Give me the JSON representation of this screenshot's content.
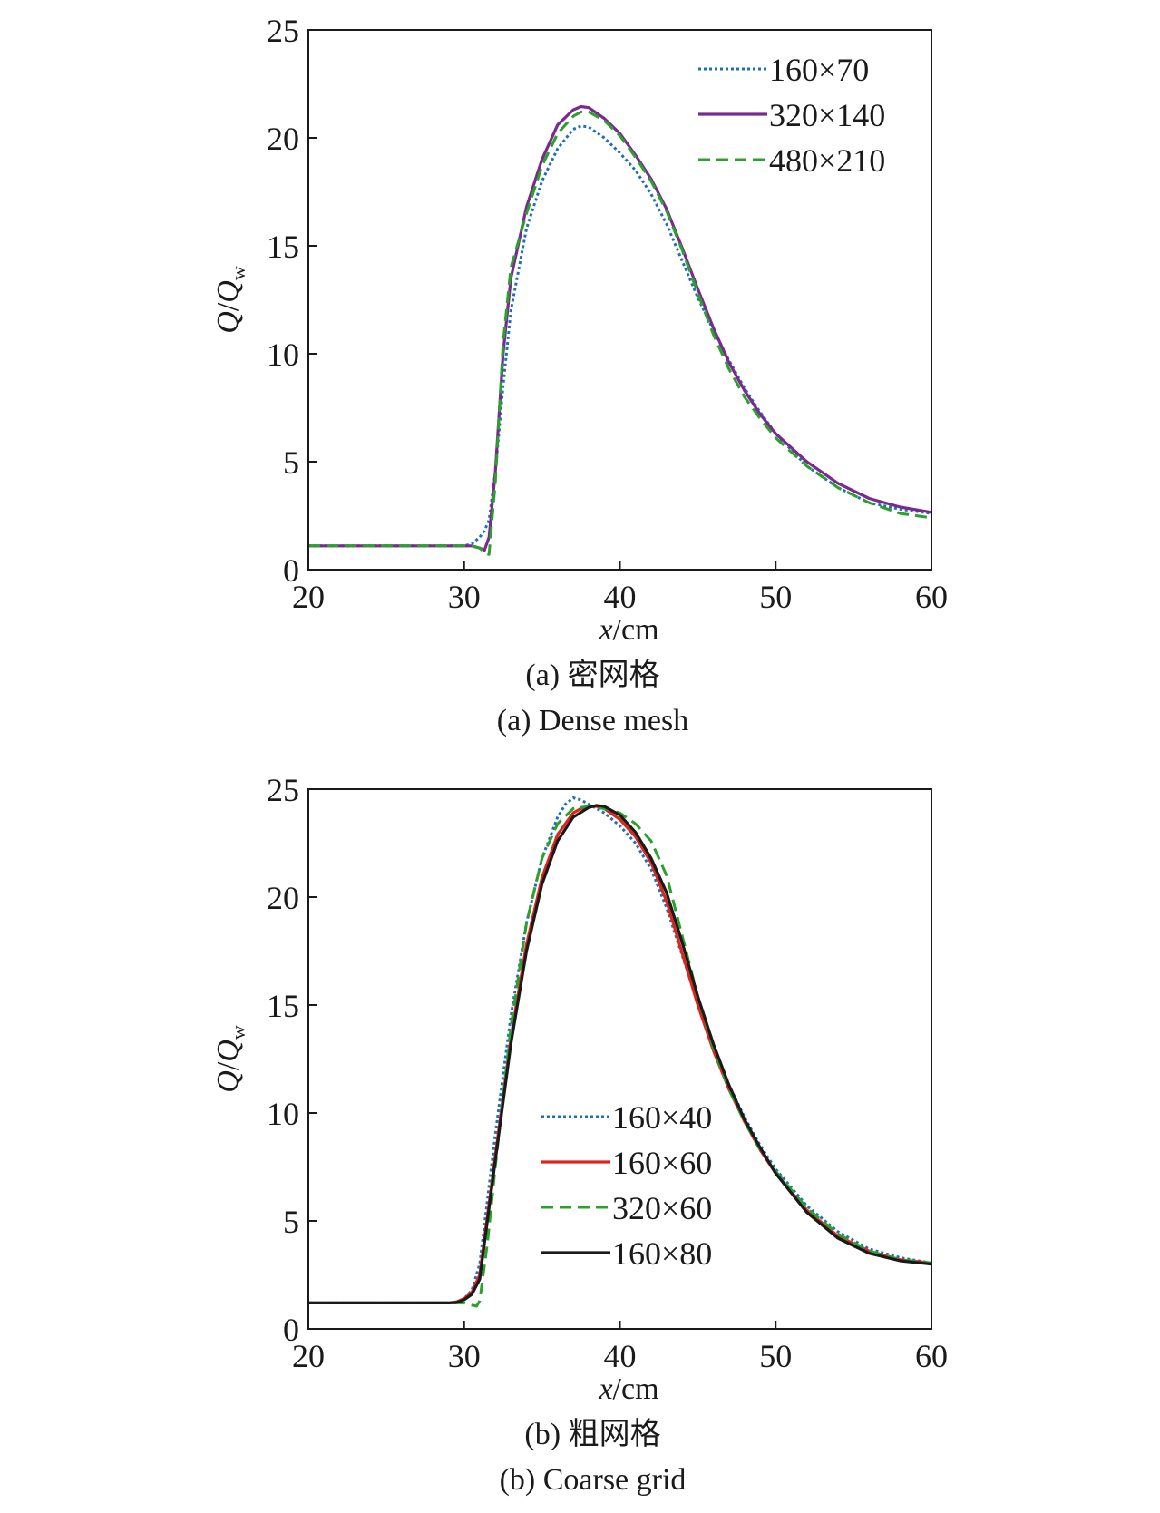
{
  "chart_data": [
    {
      "type": "line",
      "caption_cn": "(a) 密网格",
      "caption_en": "(a) Dense mesh",
      "xlabel_var": "x",
      "xlabel_unit": "/cm",
      "ylabel_num": "Q",
      "ylabel_den": "Q",
      "ylabel_sub": "w",
      "xlim": [
        20,
        60
      ],
      "ylim": [
        0,
        25
      ],
      "xticks": [
        20,
        30,
        40,
        50,
        60
      ],
      "yticks": [
        0,
        5,
        10,
        15,
        20,
        25
      ],
      "grid": false,
      "legend_position": "top-right",
      "series": [
        {
          "name": "160×70",
          "color": "#1f6fb8",
          "style": "dotted",
          "x": [
            20,
            29,
            30,
            30.5,
            31,
            31.3,
            31.6,
            32,
            32.5,
            33,
            34,
            35,
            36,
            37,
            37.5,
            38,
            39,
            40,
            41,
            42,
            43,
            44,
            45,
            46,
            47,
            48,
            49,
            50,
            52,
            54,
            56,
            58,
            60
          ],
          "y": [
            1.1,
            1.1,
            1.1,
            1.2,
            1.5,
            1.8,
            2.3,
            4.5,
            8.5,
            12.0,
            15.8,
            18.0,
            19.5,
            20.4,
            20.55,
            20.5,
            20.0,
            19.3,
            18.5,
            17.4,
            16.0,
            14.3,
            12.6,
            11.1,
            9.7,
            8.4,
            7.3,
            6.3,
            4.8,
            3.8,
            3.1,
            2.8,
            2.6
          ]
        },
        {
          "name": "320×140",
          "color": "#7a2a8f",
          "style": "solid",
          "x": [
            20,
            30,
            30.5,
            31,
            31.3,
            31.6,
            32,
            32.5,
            33,
            34,
            35,
            36,
            37,
            37.5,
            38,
            39,
            40,
            41,
            42,
            43,
            44,
            45,
            46,
            47,
            48,
            49,
            50,
            52,
            54,
            56,
            58,
            60
          ],
          "y": [
            1.1,
            1.1,
            1.1,
            1.0,
            0.9,
            1.5,
            4.5,
            10.0,
            13.5,
            16.8,
            19.0,
            20.6,
            21.3,
            21.45,
            21.4,
            20.9,
            20.2,
            19.2,
            18.1,
            16.7,
            14.9,
            13.0,
            11.2,
            9.6,
            8.3,
            7.2,
            6.3,
            5.0,
            4.0,
            3.3,
            2.9,
            2.65
          ]
        },
        {
          "name": "480×210",
          "color": "#2ca02c",
          "style": "dashed",
          "x": [
            20,
            30.5,
            31,
            31.3,
            31.6,
            32,
            32.5,
            33,
            34,
            35,
            36,
            37,
            37.5,
            38,
            39,
            40,
            41,
            42,
            43,
            44,
            45,
            46,
            47,
            48,
            49,
            50,
            52,
            54,
            56,
            58,
            60
          ],
          "y": [
            1.1,
            1.1,
            1.0,
            0.8,
            0.7,
            4.0,
            10.5,
            14.0,
            16.5,
            18.7,
            20.2,
            21.0,
            21.2,
            21.2,
            20.8,
            20.1,
            19.1,
            18.0,
            16.6,
            14.8,
            12.8,
            10.9,
            9.3,
            8.0,
            7.0,
            6.1,
            4.8,
            3.8,
            3.1,
            2.6,
            2.4
          ]
        }
      ]
    },
    {
      "type": "line",
      "caption_cn": "(b) 粗网格",
      "caption_en": "(b) Coarse grid",
      "xlabel_var": "x",
      "xlabel_unit": "/cm",
      "ylabel_num": "Q",
      "ylabel_den": "Q",
      "ylabel_sub": "w",
      "xlim": [
        20,
        60
      ],
      "ylim": [
        0,
        25
      ],
      "xticks": [
        20,
        30,
        40,
        50,
        60
      ],
      "yticks": [
        0,
        5,
        10,
        15,
        20,
        25
      ],
      "grid": false,
      "legend_position": "center",
      "series": [
        {
          "name": "160×40",
          "color": "#1f6fb8",
          "style": "dotted",
          "x": [
            20,
            29,
            29.5,
            30,
            30.5,
            31,
            32,
            33,
            34,
            35,
            36,
            36.5,
            37,
            37.5,
            38,
            39,
            40,
            41,
            42,
            43,
            44,
            45,
            46,
            47,
            48,
            49,
            50,
            52,
            54,
            56,
            58,
            60
          ],
          "y": [
            1.2,
            1.2,
            1.25,
            1.4,
            1.8,
            3.0,
            9.0,
            14.5,
            18.8,
            21.8,
            23.7,
            24.3,
            24.6,
            24.5,
            24.3,
            23.9,
            23.3,
            22.5,
            21.3,
            19.5,
            17.3,
            15.1,
            13.1,
            11.3,
            9.8,
            8.5,
            7.4,
            5.7,
            4.5,
            3.7,
            3.3,
            3.05
          ]
        },
        {
          "name": "160×60",
          "color": "#e0241a",
          "style": "solid",
          "x": [
            20,
            29,
            29.5,
            30,
            30.5,
            31,
            32,
            33,
            34,
            35,
            36,
            37,
            37.5,
            38,
            38.5,
            39,
            40,
            41,
            42,
            43,
            44,
            45,
            46,
            47,
            48,
            49,
            50,
            52,
            54,
            56,
            58,
            60
          ],
          "y": [
            1.2,
            1.2,
            1.25,
            1.4,
            1.7,
            2.5,
            8.0,
            13.5,
            17.8,
            20.9,
            22.9,
            23.9,
            24.1,
            24.2,
            24.2,
            24.1,
            23.6,
            22.8,
            21.6,
            19.8,
            17.4,
            15.0,
            12.9,
            11.1,
            9.6,
            8.3,
            7.2,
            5.5,
            4.3,
            3.6,
            3.2,
            3.05
          ]
        },
        {
          "name": "320×60",
          "color": "#2ca02c",
          "style": "dashed",
          "x": [
            20,
            30,
            30.5,
            30.8,
            31,
            31.5,
            32,
            33,
            34,
            35,
            36,
            37,
            38,
            39,
            40,
            41,
            42,
            43,
            44,
            45,
            46,
            47,
            48,
            49,
            50,
            52,
            54,
            56,
            58,
            60
          ],
          "y": [
            1.2,
            1.2,
            1.1,
            1.05,
            1.3,
            4.0,
            7.5,
            14.0,
            18.8,
            21.8,
            23.4,
            24.1,
            24.2,
            24.1,
            23.9,
            23.4,
            22.6,
            21.0,
            18.2,
            15.4,
            13.0,
            11.1,
            9.6,
            8.3,
            7.3,
            5.6,
            4.4,
            3.6,
            3.2,
            3.05
          ]
        },
        {
          "name": "160×80",
          "color": "#1a1a1a",
          "style": "solid",
          "x": [
            20,
            29,
            29.5,
            30,
            30.5,
            31,
            32,
            33,
            34,
            35,
            36,
            37,
            38,
            38.5,
            39,
            40,
            41,
            42,
            43,
            44,
            45,
            46,
            47,
            48,
            49,
            50,
            52,
            54,
            56,
            58,
            60
          ],
          "y": [
            1.2,
            1.2,
            1.22,
            1.35,
            1.6,
            2.3,
            7.8,
            13.2,
            17.5,
            20.6,
            22.6,
            23.7,
            24.15,
            24.25,
            24.2,
            23.8,
            23.0,
            21.8,
            20.2,
            17.9,
            15.4,
            13.2,
            11.3,
            9.7,
            8.4,
            7.2,
            5.4,
            4.2,
            3.5,
            3.15,
            3.0
          ]
        }
      ]
    }
  ]
}
